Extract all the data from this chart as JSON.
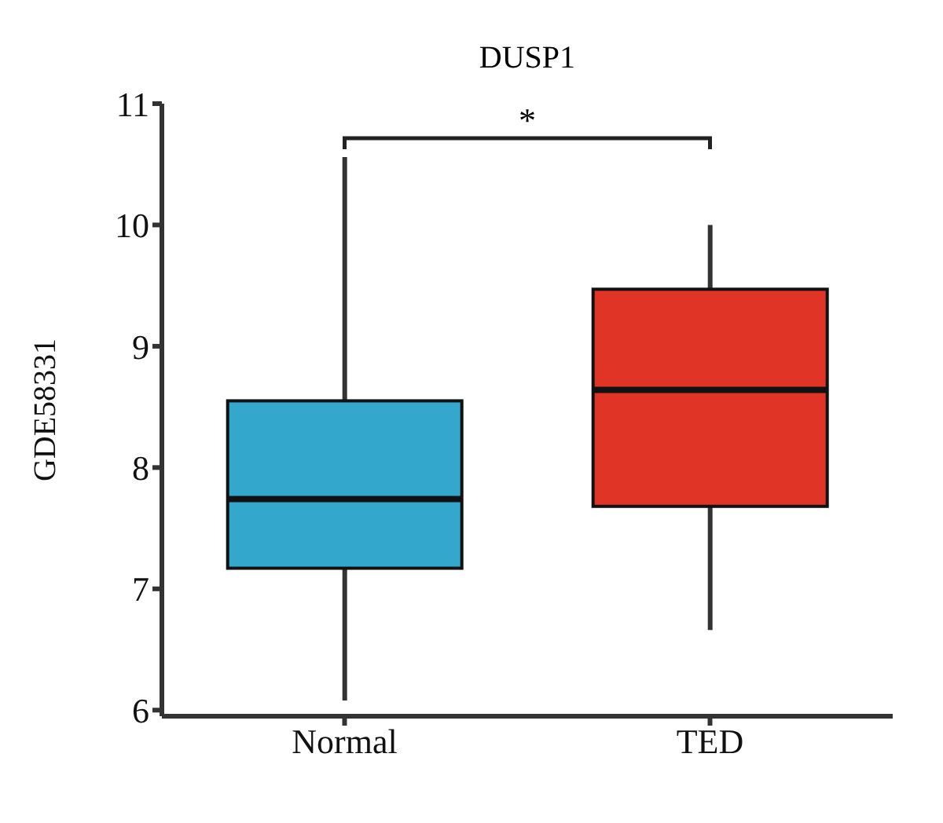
{
  "chart_data": {
    "type": "box",
    "title": "DUSP1",
    "ylabel": "GDE58331",
    "categories": [
      "Normal",
      "TED"
    ],
    "colors": [
      "#33a8cc",
      "#e03426"
    ],
    "boxes": [
      {
        "low": 6.08,
        "q1": 7.17,
        "median": 7.74,
        "q3": 8.55,
        "high": 10.56
      },
      {
        "low": 6.66,
        "q1": 7.68,
        "median": 8.64,
        "q3": 9.47,
        "high": 10.0
      }
    ],
    "ylim": [
      5.95,
      11
    ],
    "yticks": [
      6,
      7,
      8,
      9,
      10,
      11
    ],
    "annotations": [
      "*"
    ]
  }
}
